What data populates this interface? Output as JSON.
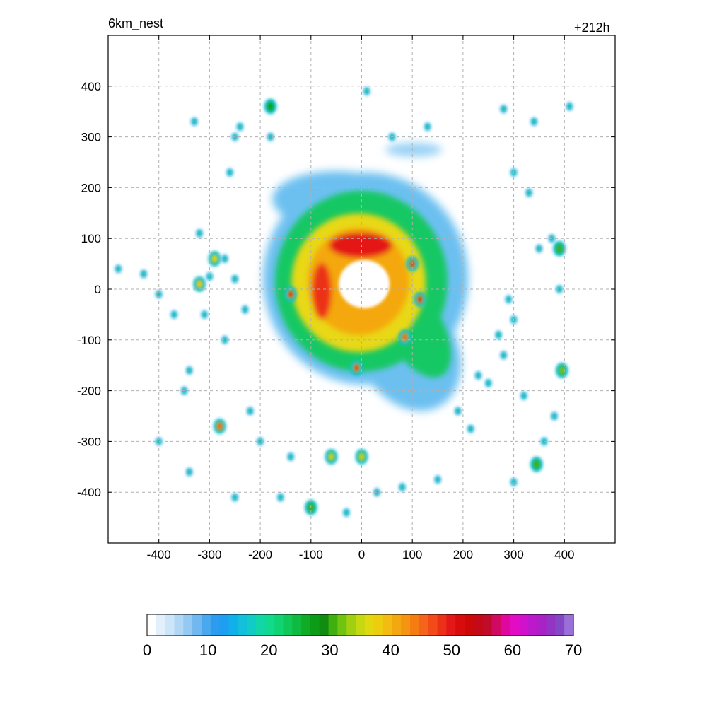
{
  "header": {
    "left_title": "6km_nest",
    "right_title": "+212h"
  },
  "chart_data": {
    "type": "heatmap",
    "title": "6km_nest",
    "subtitle": "+212h",
    "xlabel": "",
    "ylabel": "",
    "xlim": [
      -500,
      500
    ],
    "ylim": [
      -500,
      500
    ],
    "grid": true,
    "x_ticks": [
      -400,
      -300,
      -200,
      -100,
      0,
      100,
      200,
      300,
      400
    ],
    "y_ticks": [
      400,
      300,
      200,
      100,
      0,
      -100,
      -200,
      -300,
      -400
    ],
    "x_tick_labels": [
      "-400",
      "-300",
      "-200",
      "-100",
      "0",
      "100",
      "200",
      "300",
      "400"
    ],
    "y_tick_labels": [
      "400",
      "300",
      "200",
      "100",
      "0",
      "-100",
      "-200",
      "-300",
      "-400"
    ],
    "colorbar": {
      "min": 0,
      "max": 70,
      "tick_labels": [
        "0",
        "10",
        "20",
        "30",
        "40",
        "50",
        "60",
        "70"
      ],
      "colors": [
        "#ffffff",
        "#e2f0fb",
        "#cbe6f8",
        "#b0d8f5",
        "#94caf2",
        "#70b8ef",
        "#4aa8ee",
        "#2b9cf0",
        "#1e9ef0",
        "#12b0ea",
        "#12c0dc",
        "#10ccc4",
        "#12d6a8",
        "#10da8c",
        "#10d474",
        "#10c85a",
        "#10ba40",
        "#10ac28",
        "#0c9c18",
        "#108c10",
        "#40b010",
        "#70c410",
        "#a0d010",
        "#c6d810",
        "#e2d810",
        "#eecc10",
        "#f2bc10",
        "#f4a810",
        "#f49410",
        "#f47c10",
        "#f4641a",
        "#f24a18",
        "#ec3018",
        "#e41818",
        "#d80c0c",
        "#cc0808",
        "#c40a16",
        "#c00c2a",
        "#d00a60",
        "#e0089c",
        "#e20cc4",
        "#d012cc",
        "#bc18cc",
        "#a822c6",
        "#9434c4",
        "#8448c4",
        "#9a70d8"
      ],
      "placement": "bottom"
    },
    "features": [
      {
        "name": "eye",
        "x": 5,
        "y": 10,
        "value": 0
      },
      {
        "name": "eyewall",
        "x": 0,
        "y": 40,
        "value": 45
      },
      {
        "name": "spiral-band",
        "x": 0,
        "y": 20,
        "value": 30
      },
      {
        "name": "convective-cell",
        "x": -140,
        "y": -10,
        "value": 50
      },
      {
        "name": "convective-cell",
        "x": 115,
        "y": -20,
        "value": 50
      },
      {
        "name": "convective-cell",
        "x": 100,
        "y": 50,
        "value": 50
      },
      {
        "name": "convective-cell",
        "x": -10,
        "y": -155,
        "value": 48
      },
      {
        "name": "convective-cell",
        "x": 85,
        "y": -95,
        "value": 45
      },
      {
        "name": "convective-cell",
        "x": -280,
        "y": -270,
        "value": 45
      },
      {
        "name": "convective-cell",
        "x": -320,
        "y": 10,
        "value": 38
      },
      {
        "name": "convective-cell",
        "x": -290,
        "y": 60,
        "value": 36
      },
      {
        "name": "convective-cell",
        "x": -60,
        "y": -330,
        "value": 35
      },
      {
        "name": "convective-cell",
        "x": 0,
        "y": -330,
        "value": 35
      },
      {
        "name": "convective-cell",
        "x": 390,
        "y": 80,
        "value": 30
      },
      {
        "name": "convective-cell",
        "x": 395,
        "y": -160,
        "value": 32
      },
      {
        "name": "convective-cell",
        "x": 345,
        "y": -345,
        "value": 30
      },
      {
        "name": "convective-cell",
        "x": -100,
        "y": -430,
        "value": 30
      },
      {
        "name": "convective-cell",
        "x": -180,
        "y": 360,
        "value": 28
      }
    ]
  }
}
